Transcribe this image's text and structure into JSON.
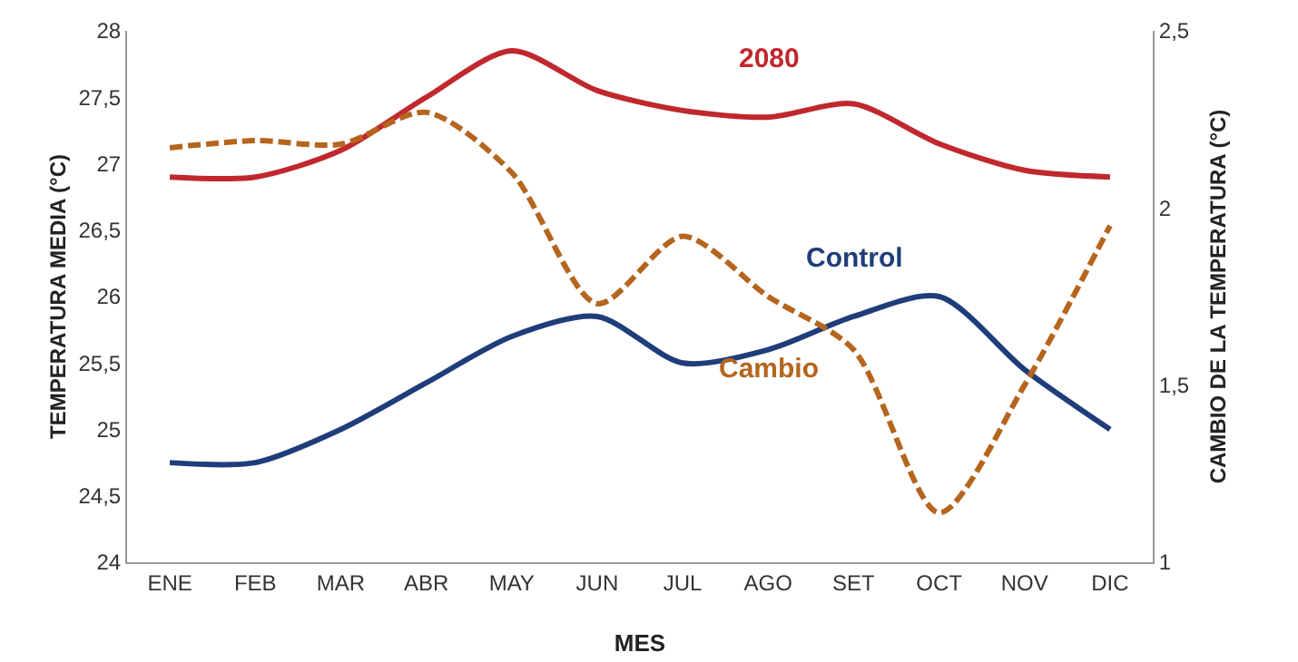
{
  "chart_data": {
    "type": "line",
    "xlabel": "MES",
    "ylabel": "TEMPERATURA MEDIA (°C)",
    "y2label": "CAMBIO DE LA TEMPERATURA (°C)",
    "categories": [
      "ENE",
      "FEB",
      "MAR",
      "ABR",
      "MAY",
      "JUN",
      "JUL",
      "AGO",
      "SET",
      "OCT",
      "NOV",
      "DIC"
    ],
    "series": [
      {
        "name": "2080",
        "color": "#c0282d",
        "line_style": "solid",
        "values": [
          26.9,
          26.9,
          27.1,
          27.5,
          27.85,
          27.55,
          27.4,
          27.35,
          27.45,
          27.15,
          26.95,
          26.9
        ]
      },
      {
        "name": "Control",
        "color": "#1f3d7a",
        "line_style": "solid",
        "values": [
          24.75,
          24.75,
          25.0,
          25.35,
          25.7,
          25.85,
          25.5,
          25.6,
          25.85,
          26.0,
          25.45,
          25.0
        ]
      },
      {
        "name": "Cambio",
        "color": "#b5651d",
        "line_style": "dashed",
        "axis": "y2",
        "values": [
          2.17,
          2.19,
          2.18,
          2.27,
          2.1,
          1.73,
          1.92,
          1.75,
          1.6,
          1.14,
          1.5,
          1.95
        ]
      }
    ],
    "ylim": [
      24,
      28
    ],
    "yticks": [
      24,
      {
        "value": 24.5,
        "label": "24,5"
      },
      25,
      {
        "value": 25.5,
        "label": "25,5"
      },
      26,
      {
        "value": 26.5,
        "label": "26,5"
      },
      27,
      {
        "value": 27.5,
        "label": "27,5"
      },
      28
    ],
    "y2lim": [
      1,
      2.5
    ],
    "y2ticks": [
      1,
      {
        "value": 1.5,
        "label": "1,5"
      },
      2,
      {
        "value": 2.5,
        "label": "2,5"
      }
    ],
    "grid": false,
    "legend": false,
    "marker": "none"
  }
}
